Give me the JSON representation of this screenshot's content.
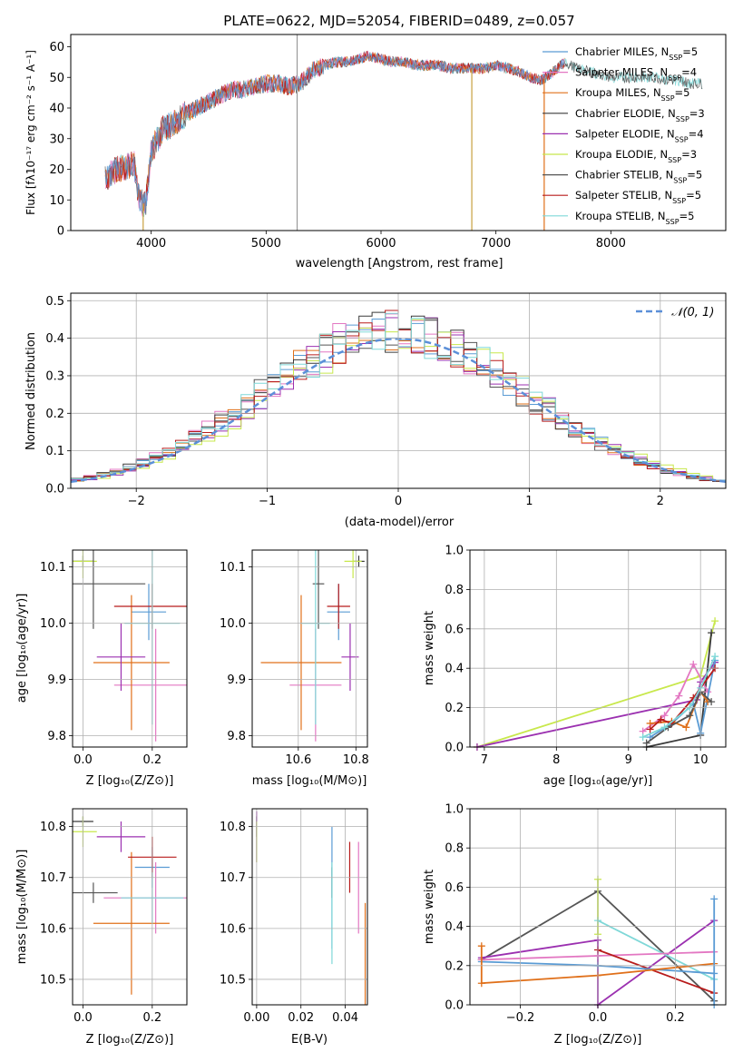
{
  "colors": {
    "Chabrier MILES": "#5a9bd4",
    "Salpeter MILES": "#e377c2",
    "Kroupa MILES": "#e0701a",
    "Chabrier ELODIE": "#3a3a3a",
    "Salpeter ELODIE": "#9b30b0",
    "Kroupa ELODIE": "#c8e84c",
    "Chabrier STELIB": "#555555",
    "Salpeter STELIB": "#b81c1c",
    "Kroupa STELIB": "#7fd8d8",
    "normal": "#5b8fd8"
  },
  "chart_data": [
    {
      "type": "line",
      "title": "PLATE=0622, MJD=52054, FIBERID=0489, z=0.057",
      "xlabel": "wavelength [Angstrom, rest frame]",
      "ylabel": "Flux [fλ10⁻¹⁷ erg cm⁻² s⁻¹ A⁻¹]",
      "xlim": [
        3300,
        9000
      ],
      "ylim": [
        0,
        64
      ],
      "xticks": [
        4000,
        5000,
        6000,
        7000,
        8000
      ],
      "yticks": [
        0,
        10,
        20,
        30,
        40,
        50,
        60
      ],
      "legend": "right",
      "legend_entries": [
        {
          "label": "Chabrier MILES, N",
          "sub": "SSP",
          "tail": "=5"
        },
        {
          "label": "Salpeter MILES, N",
          "sub": "SSP",
          "tail": "=4"
        },
        {
          "label": "Kroupa MILES, N",
          "sub": "SSP",
          "tail": "=5"
        },
        {
          "label": "Chabrier ELODIE, N",
          "sub": "SSP",
          "tail": "=3"
        },
        {
          "label": "Salpeter ELODIE, N",
          "sub": "SSP",
          "tail": "=4"
        },
        {
          "label": "Kroupa ELODIE, N",
          "sub": "SSP",
          "tail": "=3"
        },
        {
          "label": "Chabrier STELIB, N",
          "sub": "SSP",
          "tail": "=5"
        },
        {
          "label": "Salpeter STELIB, N",
          "sub": "SSP",
          "tail": "=5"
        },
        {
          "label": "Kroupa STELIB, N",
          "sub": "SSP",
          "tail": "=5"
        }
      ],
      "spectrum_envelope": {
        "x": [
          3600,
          3700,
          3800,
          3850,
          3900,
          3950,
          4000,
          4100,
          4200,
          4300,
          4400,
          4500,
          4600,
          4700,
          4800,
          4900,
          5000,
          5100,
          5200,
          5300,
          5400,
          5500,
          5600,
          5700,
          5800,
          5900,
          6000,
          6100,
          6200,
          6300,
          6400,
          6500,
          6600,
          6700,
          6800,
          6900,
          7000,
          7100,
          7200,
          7300,
          7400,
          7500,
          7600,
          7700,
          7800,
          7900,
          8000,
          8100,
          8200,
          8300,
          8400,
          8500,
          8600,
          8700,
          8800
        ],
        "y": [
          17,
          20,
          21,
          22,
          10,
          8,
          26,
          33,
          35,
          38,
          40,
          42,
          44,
          46,
          46,
          47,
          48,
          48,
          47,
          48,
          52,
          54,
          55,
          55,
          56,
          57,
          56,
          55,
          55,
          54,
          54,
          54,
          53,
          53,
          53,
          53,
          54,
          53,
          52,
          50,
          49,
          52,
          55,
          53,
          52,
          51,
          50,
          50,
          50,
          50,
          50,
          49,
          49,
          48,
          48
        ]
      },
      "vertical_spikes": [
        3930,
        5270,
        6790,
        7420
      ]
    },
    {
      "type": "area",
      "xlabel": "(data-model)/error",
      "ylabel": "Normed distribution",
      "xlim": [
        -2.5,
        2.5
      ],
      "ylim": [
        0,
        0.52
      ],
      "xticks": [
        -2,
        -1,
        0,
        1,
        2
      ],
      "xtick_labels": [
        "−2",
        "−1",
        "0",
        "1",
        "2"
      ],
      "yticks": [
        0.0,
        0.1,
        0.2,
        0.3,
        0.4,
        0.5
      ],
      "ytick_labels": [
        "0.0",
        "0.1",
        "0.2",
        "0.3",
        "0.4",
        "0.5"
      ],
      "legend": "top-right",
      "legend_label": "𝒩(0, 1)",
      "bin_width": 0.1
    },
    {
      "type": "scatter",
      "xlabel": "Z [log₁₀(Z/Z⊙)]",
      "ylabel": "age  [log₁₀(age/yr)]",
      "xlim": [
        -0.03,
        0.3
      ],
      "ylim": [
        9.78,
        10.13
      ],
      "xticks": [
        0.0,
        0.2
      ],
      "xtick_labels": [
        "0.0",
        "0.2"
      ],
      "yticks": [
        9.8,
        9.9,
        10.0,
        10.1
      ],
      "ytick_labels": [
        "9.8",
        "9.9",
        "10.0",
        "10.1"
      ],
      "points": [
        {
          "series": "Chabrier MILES",
          "x": 0.19,
          "y": 10.02,
          "xerr": 0.05,
          "yerr": 0.05
        },
        {
          "series": "Salpeter MILES",
          "x": 0.21,
          "y": 9.89,
          "xerr": 0.12,
          "yerr": 0.1
        },
        {
          "series": "Kroupa MILES",
          "x": 0.14,
          "y": 9.93,
          "xerr": 0.11,
          "yerr": 0.12
        },
        {
          "series": "Chabrier ELODIE",
          "x": 0.0,
          "y": 10.11,
          "xerr": 0.03,
          "yerr": 0.01
        },
        {
          "series": "Salpeter ELODIE",
          "x": 0.11,
          "y": 9.94,
          "xerr": 0.07,
          "yerr": 0.06
        },
        {
          "series": "Kroupa ELODIE",
          "x": 0.0,
          "y": 10.11,
          "xerr": 0.04,
          "yerr": 0.03
        },
        {
          "series": "Chabrier STELIB",
          "x": 0.03,
          "y": 10.07,
          "xerr": 0.15,
          "yerr": 0.08
        },
        {
          "series": "Salpeter STELIB",
          "x": 0.2,
          "y": 10.03,
          "xerr": 0.11,
          "yerr": 0.04
        },
        {
          "series": "Kroupa STELIB",
          "x": 0.2,
          "y": 10.0,
          "xerr": 0.08,
          "yerr": 0.18
        }
      ]
    },
    {
      "type": "scatter",
      "xlabel": "mass [log₁₀(M/M⊙)]",
      "xlim": [
        10.44,
        10.84
      ],
      "ylim": [
        9.78,
        10.13
      ],
      "xticks": [
        10.6,
        10.8
      ],
      "xtick_labels": [
        "10.6",
        "10.8"
      ],
      "yticks": [
        9.8,
        9.9,
        10.0,
        10.1
      ],
      "ytick_labels": [
        "9.8",
        "9.9",
        "10.0",
        "10.1"
      ],
      "points": [
        {
          "series": "Chabrier MILES",
          "x": 10.74,
          "y": 10.02,
          "xerr": 0.04,
          "yerr": 0.05
        },
        {
          "series": "Salpeter MILES",
          "x": 10.66,
          "y": 9.89,
          "xerr": 0.09,
          "yerr": 0.1
        },
        {
          "series": "Kroupa MILES",
          "x": 10.61,
          "y": 9.93,
          "xerr": 0.14,
          "yerr": 0.12
        },
        {
          "series": "Chabrier ELODIE",
          "x": 10.81,
          "y": 10.11,
          "xerr": 0.02,
          "yerr": 0.01
        },
        {
          "series": "Salpeter ELODIE",
          "x": 10.78,
          "y": 9.94,
          "xerr": 0.03,
          "yerr": 0.06
        },
        {
          "series": "Kroupa ELODIE",
          "x": 10.79,
          "y": 10.11,
          "xerr": 0.03,
          "yerr": 0.03
        },
        {
          "series": "Chabrier STELIB",
          "x": 10.67,
          "y": 10.07,
          "xerr": 0.02,
          "yerr": 0.08
        },
        {
          "series": "Salpeter STELIB",
          "x": 10.74,
          "y": 10.03,
          "xerr": 0.04,
          "yerr": 0.04
        },
        {
          "series": "Kroupa STELIB",
          "x": 10.66,
          "y": 10.0,
          "xerr": 0.05,
          "yerr": 0.18
        }
      ]
    },
    {
      "type": "line",
      "xlabel": "age  [log₁₀(age/yr)]",
      "ylabel": "mass weight",
      "xlim": [
        6.8,
        10.35
      ],
      "ylim": [
        0,
        1.0
      ],
      "xticks": [
        7,
        8,
        9,
        10
      ],
      "yticks": [
        0.0,
        0.2,
        0.4,
        0.6,
        0.8,
        1.0
      ],
      "ytick_labels": [
        "0.0",
        "0.2",
        "0.4",
        "0.6",
        "0.8",
        "1.0"
      ],
      "grid": true,
      "series": [
        {
          "name": "Kroupa ELODIE",
          "x": [
            6.9,
            10.0,
            10.2
          ],
          "y": [
            0.0,
            0.36,
            0.64
          ]
        },
        {
          "name": "Salpeter ELODIE",
          "x": [
            6.9,
            9.95,
            10.0,
            10.2
          ],
          "y": [
            0.0,
            0.24,
            0.33,
            0.43
          ]
        },
        {
          "name": "Chabrier ELODIE",
          "x": [
            9.25,
            10.0,
            10.15
          ],
          "y": [
            0.0,
            0.06,
            0.58
          ]
        },
        {
          "name": "Salpeter MILES",
          "x": [
            9.2,
            9.5,
            9.7,
            9.9,
            10.1
          ],
          "y": [
            0.08,
            0.16,
            0.26,
            0.42,
            0.28
          ]
        },
        {
          "name": "Chabrier MILES",
          "x": [
            9.3,
            9.6,
            9.9,
            10.0,
            10.2
          ],
          "y": [
            0.05,
            0.12,
            0.22,
            0.07,
            0.44
          ]
        },
        {
          "name": "Kroupa MILES",
          "x": [
            9.3,
            9.6,
            9.8,
            10.0,
            10.1
          ],
          "y": [
            0.12,
            0.13,
            0.1,
            0.28,
            0.23
          ]
        },
        {
          "name": "Salpeter STELIB",
          "x": [
            9.3,
            9.45,
            9.6,
            9.9,
            10.2
          ],
          "y": [
            0.09,
            0.14,
            0.12,
            0.25,
            0.4
          ]
        },
        {
          "name": "Chabrier STELIB",
          "x": [
            9.25,
            9.55,
            9.85,
            10.0,
            10.15
          ],
          "y": [
            0.02,
            0.1,
            0.16,
            0.28,
            0.23
          ]
        },
        {
          "name": "Kroupa STELIB",
          "x": [
            9.2,
            9.5,
            9.85,
            10.0,
            10.2
          ],
          "y": [
            0.05,
            0.1,
            0.2,
            0.3,
            0.46
          ]
        }
      ]
    },
    {
      "type": "scatter",
      "xlabel": "Z [log₁₀(Z/Z⊙)]",
      "ylabel": "mass [log₁₀(M/M⊙)]",
      "xlim": [
        -0.03,
        0.3
      ],
      "ylim": [
        10.45,
        10.835
      ],
      "xticks": [
        0.0,
        0.2
      ],
      "xtick_labels": [
        "0.0",
        "0.2"
      ],
      "yticks": [
        10.5,
        10.6,
        10.7,
        10.8
      ],
      "ytick_labels": [
        "10.5",
        "10.6",
        "10.7",
        "10.8"
      ],
      "points": [
        {
          "series": "Chabrier MILES",
          "x": 0.2,
          "y": 10.72,
          "xerr": 0.05,
          "yerr": 0.04
        },
        {
          "series": "Salpeter MILES",
          "x": 0.21,
          "y": 10.66,
          "xerr": 0.15,
          "yerr": 0.07
        },
        {
          "series": "Kroupa MILES",
          "x": 0.14,
          "y": 10.61,
          "xerr": 0.11,
          "yerr": 0.14
        },
        {
          "series": "Chabrier ELODIE",
          "x": 0.0,
          "y": 10.81,
          "xerr": 0.03,
          "yerr": 0.01
        },
        {
          "series": "Salpeter ELODIE",
          "x": 0.11,
          "y": 10.78,
          "xerr": 0.07,
          "yerr": 0.03
        },
        {
          "series": "Kroupa ELODIE",
          "x": 0.0,
          "y": 10.79,
          "xerr": 0.04,
          "yerr": 0.03
        },
        {
          "series": "Chabrier STELIB",
          "x": 0.03,
          "y": 10.67,
          "xerr": 0.07,
          "yerr": 0.02
        },
        {
          "series": "Salpeter STELIB",
          "x": 0.2,
          "y": 10.74,
          "xerr": 0.07,
          "yerr": 0.04
        },
        {
          "series": "Kroupa STELIB",
          "x": 0.2,
          "y": 10.66,
          "xerr": 0.09,
          "yerr": 0.05
        }
      ]
    },
    {
      "type": "scatter",
      "xlabel": "E(B-V)",
      "xlim": [
        -0.002,
        0.05
      ],
      "ylim": [
        10.45,
        10.835
      ],
      "xticks": [
        0.0,
        0.02,
        0.04
      ],
      "xtick_labels": [
        "0.00",
        "0.02",
        "0.04"
      ],
      "yticks": [
        10.5,
        10.6,
        10.7,
        10.8
      ],
      "ytick_labels": [
        "10.5",
        "10.6",
        "10.7",
        "10.8"
      ],
      "points": [
        {
          "series": "Chabrier MILES",
          "x": 0.034,
          "y": 10.68,
          "yerr": 0.12
        },
        {
          "series": "Salpeter MILES",
          "x": 0.046,
          "y": 10.68,
          "yerr": 0.09
        },
        {
          "series": "Kroupa MILES",
          "x": 0.049,
          "y": 10.55,
          "yerr": 0.1
        },
        {
          "series": "Chabrier ELODIE",
          "x": 0.0,
          "y": 10.8,
          "yerr": 0.02
        },
        {
          "series": "Salpeter ELODIE",
          "x": 0.0,
          "y": 10.78,
          "yerr": 0.05
        },
        {
          "series": "Kroupa ELODIE",
          "x": 0.0,
          "y": 10.77,
          "yerr": 0.04
        },
        {
          "series": "Chabrier STELIB",
          "x": 0.034,
          "y": 10.69,
          "yerr": 0.03
        },
        {
          "series": "Salpeter STELIB",
          "x": 0.042,
          "y": 10.72,
          "yerr": 0.05
        },
        {
          "series": "Kroupa STELIB",
          "x": 0.034,
          "y": 10.63,
          "yerr": 0.1
        }
      ]
    },
    {
      "type": "line",
      "xlabel": "Z [log₁₀(Z/Z⊙)]",
      "ylabel": "mass weight",
      "xlim": [
        -0.33,
        0.33
      ],
      "ylim": [
        0,
        1.0
      ],
      "xticks": [
        -0.2,
        0.0,
        0.2
      ],
      "xtick_labels": [
        "−0.2",
        "0.0",
        "0.2"
      ],
      "yticks": [
        0.0,
        0.2,
        0.4,
        0.6,
        0.8,
        1.0
      ],
      "ytick_labels": [
        "0.0",
        "0.2",
        "0.4",
        "0.6",
        "0.8",
        "1.0"
      ],
      "grid": true,
      "series": [
        {
          "name": "Chabrier STELIB",
          "x": [
            -0.3,
            0.0,
            0.3
          ],
          "y": [
            0.23,
            0.58,
            0.02
          ]
        },
        {
          "name": "Kroupa ELODIE",
          "x": [
            0.0,
            0.0
          ],
          "y": [
            0.64,
            0.36
          ]
        },
        {
          "name": "Salpeter ELODIE",
          "x": [
            -0.3,
            0.0,
            0.0,
            0.3
          ],
          "y": [
            0.24,
            0.33,
            0.0,
            0.43
          ]
        },
        {
          "name": "Kroupa STELIB",
          "x": [
            0.0,
            0.3
          ],
          "y": [
            0.43,
            0.13
          ]
        },
        {
          "name": "Salpeter MILES",
          "x": [
            -0.3,
            0.0,
            0.3
          ],
          "y": [
            0.23,
            0.25,
            0.27
          ]
        },
        {
          "name": "Salpeter STELIB",
          "x": [
            0.0,
            0.3
          ],
          "y": [
            0.28,
            0.06
          ]
        },
        {
          "name": "Chabrier MILES",
          "x": [
            -0.3,
            0.0,
            0.3
          ],
          "y": [
            0.22,
            0.2,
            0.16
          ]
        },
        {
          "name": "Kroupa MILES",
          "x": [
            -0.3,
            -0.3,
            0.0,
            0.3
          ],
          "y": [
            0.3,
            0.11,
            0.15,
            0.21
          ]
        },
        {
          "name": "Chabrier MILES",
          "x": [
            0.3,
            0.3
          ],
          "y": [
            0.54,
            0.0
          ]
        }
      ]
    }
  ]
}
